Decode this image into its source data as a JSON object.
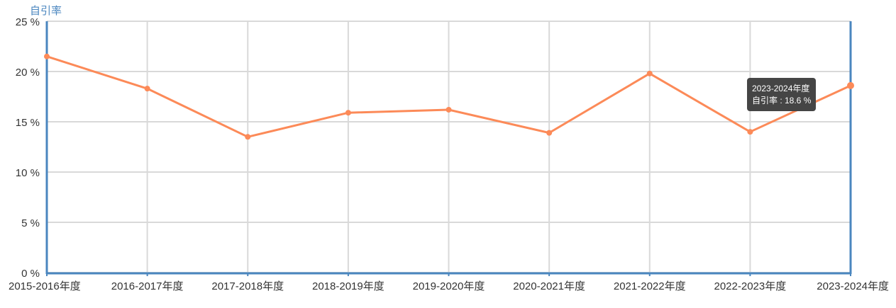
{
  "chart_data": {
    "type": "line",
    "ylabel": "自引率",
    "ylim": [
      0,
      25
    ],
    "yticks": [
      "0 %",
      "5 %",
      "10 %",
      "15 %",
      "20 %",
      "25 %"
    ],
    "categories": [
      "2015-2016年度",
      "2016-2017年度",
      "2017-2018年度",
      "2018-2019年度",
      "2019-2020年度",
      "2020-2021年度",
      "2021-2022年度",
      "2022-2023年度",
      "2023-2024年度"
    ],
    "series": [
      {
        "name": "自引率",
        "values": [
          21.5,
          18.3,
          13.5,
          15.9,
          16.2,
          13.9,
          19.8,
          14.0,
          18.6
        ]
      }
    ],
    "grid": true
  },
  "colors": {
    "line": "#fc8a58",
    "axis": "#4a86bf",
    "grid": "#d9d9d9"
  },
  "tooltip": {
    "title": "2023-2024年度",
    "text": "自引率 : 18.6 %"
  }
}
